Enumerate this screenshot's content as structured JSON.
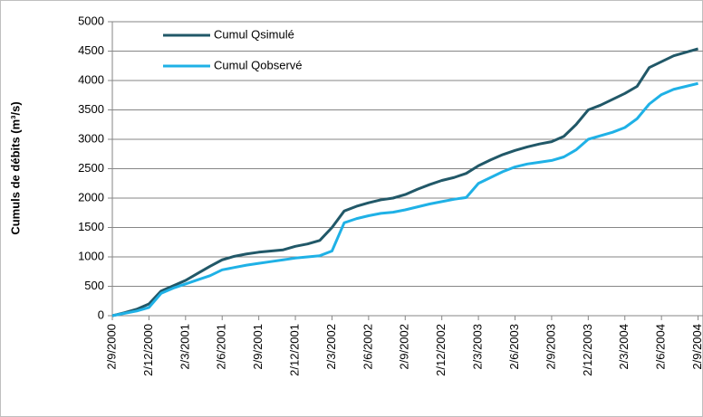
{
  "chart_data": {
    "type": "line",
    "ylabel": "Cumuls de débits (m³/s)",
    "categories": [
      "2/9/2000",
      null,
      null,
      "2/12/2000",
      null,
      null,
      "2/3/2001",
      null,
      null,
      "2/6/2001",
      null,
      null,
      "2/9/2001",
      null,
      null,
      "2/12/2001",
      null,
      null,
      "2/3/2002",
      null,
      null,
      "2/6/2002",
      null,
      null,
      "2/9/2002",
      null,
      null,
      "2/12/2002",
      null,
      null,
      "2/3/2003",
      null,
      null,
      "2/6/2003",
      null,
      null,
      "2/9/2003",
      null,
      null,
      "2/12/2003",
      null,
      null,
      "2/3/2004",
      null,
      null,
      "2/6/2004",
      null,
      null,
      "2/9/2004"
    ],
    "series": [
      {
        "name": "Cumul Qsimulé",
        "color": "#215868",
        "values": [
          0,
          50,
          110,
          200,
          420,
          510,
          600,
          720,
          840,
          950,
          1010,
          1050,
          1080,
          1100,
          1120,
          1180,
          1220,
          1280,
          1500,
          1780,
          1860,
          1920,
          1970,
          2000,
          2060,
          2150,
          2230,
          2300,
          2350,
          2420,
          2550,
          2650,
          2740,
          2810,
          2870,
          2920,
          2960,
          3050,
          3250,
          3500,
          3580,
          3680,
          3780,
          3900,
          4220,
          4320,
          4420,
          4480,
          4540
        ]
      },
      {
        "name": "Cumul Qobservé",
        "color": "#1fb1e6",
        "values": [
          0,
          40,
          80,
          140,
          380,
          470,
          540,
          610,
          680,
          780,
          820,
          860,
          890,
          920,
          950,
          980,
          1000,
          1020,
          1100,
          1580,
          1650,
          1700,
          1740,
          1760,
          1800,
          1850,
          1900,
          1940,
          1980,
          2010,
          2250,
          2350,
          2450,
          2530,
          2580,
          2610,
          2640,
          2700,
          2820,
          3000,
          3060,
          3120,
          3200,
          3350,
          3600,
          3760,
          3850,
          3900,
          3950
        ]
      }
    ],
    "ylim": [
      0,
      5000
    ],
    "yticks": [
      0,
      500,
      1000,
      1500,
      2000,
      2500,
      3000,
      3500,
      4000,
      4500,
      5000
    ],
    "grid": true,
    "legend": "top-left"
  }
}
